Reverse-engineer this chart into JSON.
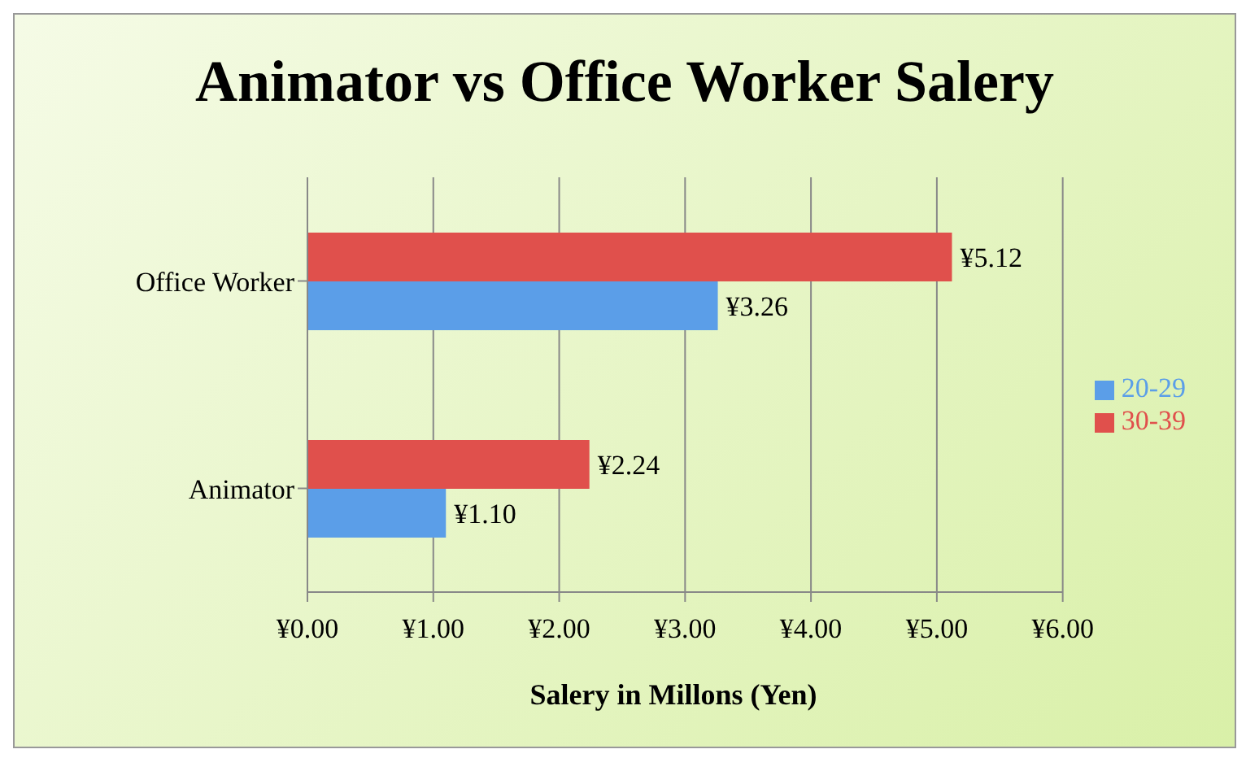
{
  "chart_data": {
    "type": "bar",
    "orientation": "horizontal",
    "title": "Animator vs Office Worker Salery",
    "xlabel": "Salery in Millons (Yen)",
    "categories": [
      "Office Worker",
      "Animator"
    ],
    "series": [
      {
        "name": "30-39",
        "color": "#e0504c",
        "values": [
          5.12,
          2.24
        ],
        "value_labels": [
          "¥5.12",
          "¥2.24"
        ]
      },
      {
        "name": "20-29",
        "color": "#5b9ee8",
        "values": [
          3.26,
          1.1
        ],
        "value_labels": [
          "¥3.26",
          "¥1.10"
        ]
      }
    ],
    "xlim": [
      0,
      6
    ],
    "xticks": [
      {
        "value": 0,
        "label": "¥0.00"
      },
      {
        "value": 1,
        "label": "¥1.00"
      },
      {
        "value": 2,
        "label": "¥2.00"
      },
      {
        "value": 3,
        "label": "¥3.00"
      },
      {
        "value": 4,
        "label": "¥4.00"
      },
      {
        "value": 5,
        "label": "¥5.00"
      },
      {
        "value": 6,
        "label": "¥6.00"
      }
    ],
    "grid": "x",
    "legend": "right"
  }
}
